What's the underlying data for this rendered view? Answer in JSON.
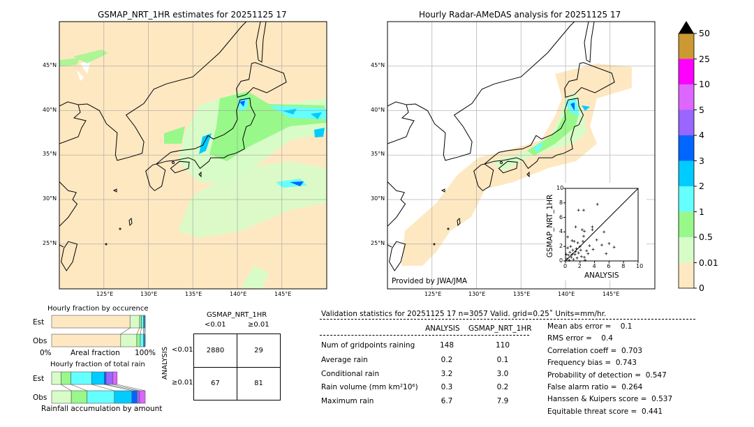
{
  "left_map": {
    "title": "GSMAP_NRT_1HR estimates for 20251125 17",
    "lon_labels": [
      "125°E",
      "130°E",
      "135°E",
      "140°E",
      "145°E"
    ],
    "lat_labels": [
      "45°N",
      "40°N",
      "35°N",
      "30°N",
      "25°N"
    ]
  },
  "right_map": {
    "title": "Hourly Radar-AMeDAS analysis for 20251125 17",
    "lon_labels": [
      "125°E",
      "130°E",
      "135°E",
      "140°E",
      "145°E"
    ],
    "lat_labels": [
      "45°N",
      "40°N",
      "35°N",
      "30°N",
      "25°N"
    ],
    "credit": "Provided by JWA/JMA"
  },
  "scatter": {
    "xlabel": "ANALYSIS",
    "ylabel": "GSMAP_NRT_1HR",
    "ticks": [
      "0",
      "2",
      "4",
      "6",
      "8",
      "10"
    ],
    "xlim": [
      0,
      10
    ],
    "ylim": [
      0,
      10
    ],
    "points": [
      [
        1.8,
        7.0
      ],
      [
        2.5,
        7.0
      ],
      [
        4.4,
        7.8
      ],
      [
        1.4,
        4.7
      ],
      [
        2.3,
        4.3
      ],
      [
        2.6,
        4.1
      ],
      [
        3.7,
        4.7
      ],
      [
        3.7,
        4.3
      ],
      [
        5.3,
        4.0
      ],
      [
        0.3,
        3.3
      ],
      [
        2.5,
        3.4
      ],
      [
        4.3,
        2.9
      ],
      [
        5.0,
        2.2
      ],
      [
        6.0,
        2.4
      ],
      [
        6.7,
        1.9
      ],
      [
        5.6,
        1.0
      ],
      [
        3.8,
        1.6
      ],
      [
        3.3,
        2.1
      ],
      [
        2.9,
        1.4
      ],
      [
        2.0,
        2.0
      ],
      [
        1.7,
        2.5
      ],
      [
        1.2,
        2.7
      ],
      [
        0.9,
        2.8
      ],
      [
        1.5,
        1.7
      ],
      [
        1.0,
        1.5
      ],
      [
        0.6,
        1.2
      ],
      [
        0.4,
        0.8
      ],
      [
        0.8,
        0.5
      ],
      [
        1.3,
        0.9
      ],
      [
        2.2,
        0.6
      ],
      [
        2.6,
        0.5
      ],
      [
        0.2,
        0.3
      ],
      [
        0.5,
        0.1
      ],
      [
        1.1,
        0.2
      ],
      [
        1.8,
        1.1
      ],
      [
        0.3,
        1.8
      ],
      [
        0.7,
        2.0
      ],
      [
        1.6,
        0.4
      ],
      [
        2.1,
        1.5
      ],
      [
        2.4,
        2.7
      ],
      [
        0.1,
        0.9
      ],
      [
        1.4,
        1.3
      ],
      [
        0.9,
        0.9
      ],
      [
        2.7,
        0.1
      ],
      [
        3.1,
        1.0
      ]
    ]
  },
  "colorbar": {
    "labels": [
      "0",
      "0.01",
      "0.5",
      "1",
      "2",
      "3",
      "4",
      "5",
      "10",
      "25",
      "50"
    ],
    "colors": [
      "#fee8c2",
      "#d8fcc8",
      "#98f88a",
      "#66ffff",
      "#00ccff",
      "#0066ff",
      "#9966ff",
      "#dd66ff",
      "#ff00ff",
      "#cc9933"
    ],
    "over_color": "#000000"
  },
  "occurrence": {
    "title": "Hourly fraction by occurence",
    "row_labels": [
      "Est",
      "Obs"
    ],
    "xlabel_left": "0%",
    "xlabel_mid": "Areal fraction",
    "xlabel_right": "100%",
    "est": [
      0.8375,
      0.1025,
      0.02,
      0.02,
      0.0125,
      0.0075
    ],
    "obs": [
      0.7375,
      0.1725,
      0.0375,
      0.0325,
      0.0125,
      0.0075
    ],
    "colors": [
      "#fee8c2",
      "#d8fcc8",
      "#98f88a",
      "#66ffff",
      "#00ccff",
      "#0066ff"
    ]
  },
  "total_rain": {
    "title": "Hourly fraction of total rain",
    "row_labels": [
      "Est",
      "Obs"
    ],
    "xlabel": "Rainfall accumulation by amount",
    "est": [
      0.1,
      0.105,
      0.2225,
      0.135,
      0.02,
      0.0725,
      0.045
    ],
    "obs": [
      0.21,
      0.1675,
      0.2925,
      0.1875,
      0.055,
      0.0275,
      0.06
    ],
    "colors": [
      "#d8fcc8",
      "#98f88a",
      "#66ffff",
      "#00ccff",
      "#0066ff",
      "#9966ff",
      "#dd66ff"
    ]
  },
  "contingency": {
    "col_title": "GSMAP_NRT_1HR",
    "col_labels": [
      "<0.01",
      "≥0.01"
    ],
    "row_title": "ANALYSIS",
    "row_labels": [
      "<0.01",
      "≥0.01"
    ],
    "cells": [
      [
        "2880",
        "29"
      ],
      [
        "67",
        "81"
      ]
    ]
  },
  "stats": {
    "header": "Validation statistics for 20251125 17  n=3057 Valid. grid=0.25˚ Units=mm/hr.",
    "col_analysis": "ANALYSIS",
    "col_gsmap": "GSMAP_NRT_1HR",
    "rows": [
      {
        "label": "Num of gridpoints raining",
        "analysis": "148",
        "gsmap": "110"
      },
      {
        "label": "Average rain",
        "analysis": "0.2",
        "gsmap": "0.1"
      },
      {
        "label": "Conditional rain",
        "analysis": "3.2",
        "gsmap": "3.0"
      },
      {
        "label": "Rain volume (mm km²10⁶)",
        "analysis": "0.3",
        "gsmap": "0.2"
      },
      {
        "label": "Maximum rain",
        "analysis": "6.7",
        "gsmap": "7.9"
      }
    ],
    "scores": [
      "Mean abs error =    0.1",
      "RMS error =    0.4",
      "Correlation coeff =  0.703",
      "Frequency bias =  0.743",
      "Probability of detection =  0.547",
      "False alarm ratio =  0.264",
      "Hanssen & Kuipers score =  0.537",
      "Equitable threat score =  0.441"
    ]
  }
}
